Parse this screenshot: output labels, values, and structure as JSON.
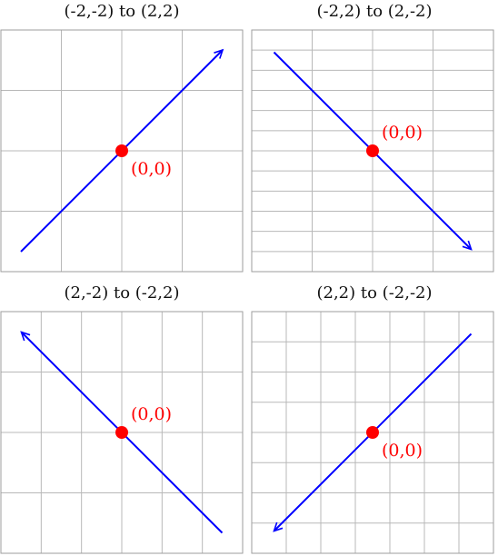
{
  "colors": {
    "grid": "#b8b8b8",
    "frame": "#9e9e9e",
    "arrow": "#0000ff",
    "point": "#ff0000"
  },
  "panels": [
    {
      "title": "(-2,-2) to (2,2)",
      "grid_cols": 4,
      "grid_rows": 4,
      "from": [
        -2,
        -2
      ],
      "to": [
        2,
        2
      ],
      "point": [
        0,
        0
      ],
      "point_label": "(0,0)",
      "label_side": "below-right"
    },
    {
      "title": "(-2,2) to (2,-2)",
      "grid_cols": 4,
      "grid_rows": 12,
      "from": [
        -2,
        2
      ],
      "to": [
        2,
        -2
      ],
      "point": [
        0,
        0
      ],
      "point_label": "(0,0)",
      "label_side": "above-right"
    },
    {
      "title": "(2,-2) to (-2,2)",
      "grid_cols": 6,
      "grid_rows": 4,
      "from": [
        2,
        -2
      ],
      "to": [
        -2,
        2
      ],
      "point": [
        0,
        0
      ],
      "point_label": "(0,0)",
      "label_side": "above-right"
    },
    {
      "title": "(2,2) to (-2,-2)",
      "grid_cols": 7,
      "grid_rows": 8,
      "from": [
        2,
        2
      ],
      "to": [
        -2,
        -2
      ],
      "point": [
        0,
        0
      ],
      "point_label": "(0,0)",
      "label_side": "below-right"
    }
  ]
}
